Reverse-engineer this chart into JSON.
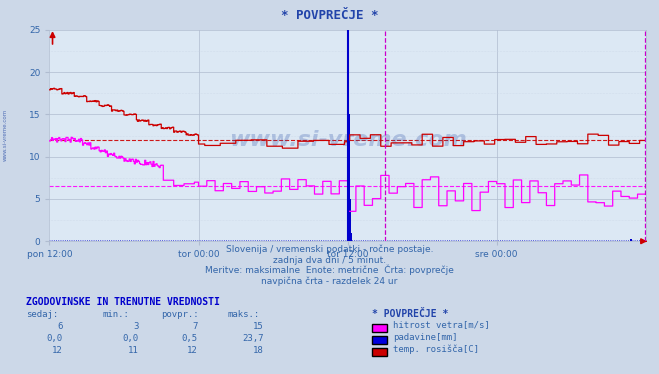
{
  "title": "* POVPREČJE *",
  "bg_color": "#ccd8e8",
  "plot_bg_color": "#dce8f4",
  "grid_color": "#b0bcd0",
  "xlim": [
    0,
    576
  ],
  "ylim": [
    0,
    25
  ],
  "yticks": [
    0,
    5,
    10,
    15,
    20,
    25
  ],
  "xtick_pos": [
    0,
    144,
    288,
    432
  ],
  "xtick_labels": [
    "pon 12:00",
    "tor 00:00",
    "tor 12:00",
    "sre 00:00"
  ],
  "vline_solid_x": 288,
  "vline_dashed_x": 324,
  "vline_right_x": 575,
  "hline_red_y": 12.0,
  "hline_magenta_y": 6.5,
  "hline_blue_y": 0.2,
  "subtitle1": "Slovenija / vremenski podatki - ročne postaje.",
  "subtitle2": "zadnja dva dni / 5 minut.",
  "subtitle3": "Meritve: maksimalne  Enote: metrične  Črta: povprečje",
  "subtitle4": "navpična črta - razdelek 24 ur",
  "table_header": "ZGODOVINSKE IN TRENUTNE VREDNOSTI",
  "col_headers": [
    "sedaj:",
    "min.:",
    "povpr.:",
    "maks.:"
  ],
  "row1_vals": [
    "6",
    "3",
    "7",
    "15"
  ],
  "row2_vals": [
    "0,0",
    "0,0",
    "0,5",
    "23,7"
  ],
  "row3_vals": [
    "12",
    "11",
    "12",
    "18"
  ],
  "legend_title": "* POVPREČJE *",
  "legend_labels": [
    "hitrost vetra[m/s]",
    "padavine[mm]",
    "temp. rosišča[C]"
  ],
  "legend_colors": [
    "#ff00ff",
    "#0000dd",
    "#cc0000"
  ],
  "watermark": "www.si-vreme.com",
  "sidebar_text": "www.si-vreme.com",
  "red_color": "#cc0000",
  "magenta_color": "#ff00ff",
  "blue_color": "#0000cc",
  "text_color": "#3366aa",
  "title_color": "#2244aa"
}
